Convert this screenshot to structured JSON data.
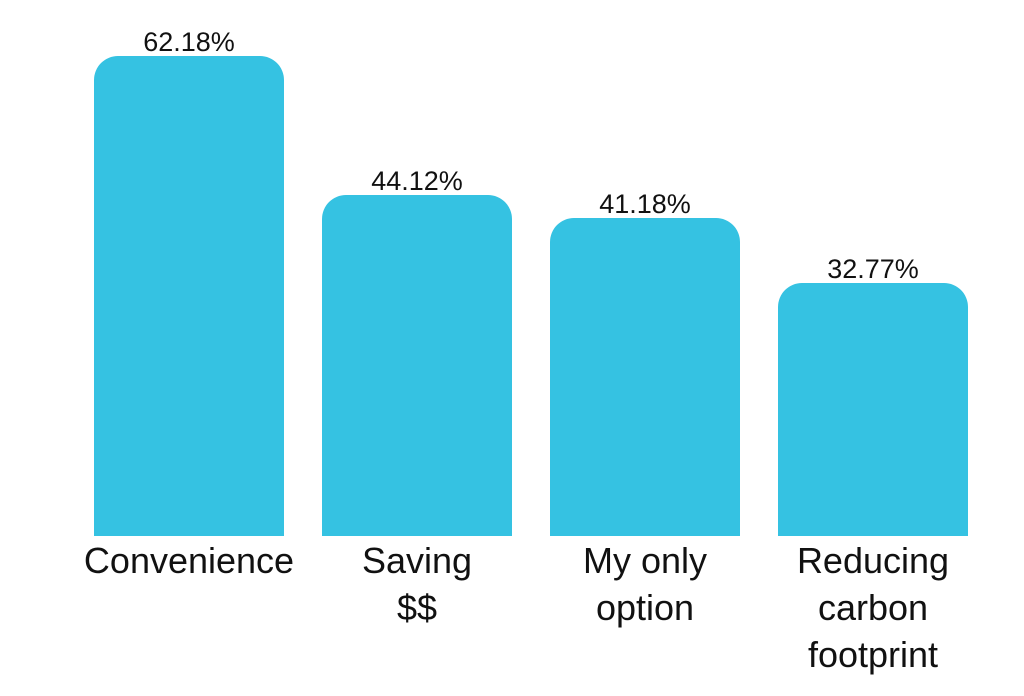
{
  "chart_data": {
    "type": "bar",
    "title": "",
    "xlabel": "",
    "ylabel": "",
    "categories": [
      "Convenience",
      "Saving $$",
      "My only option",
      "Reducing carbon footprint"
    ],
    "category_label_lines": [
      [
        "Convenience"
      ],
      [
        "Saving",
        "$$"
      ],
      [
        "My only",
        "option"
      ],
      [
        "Reducing",
        "carbon",
        "footprint"
      ]
    ],
    "values": [
      62.18,
      44.12,
      41.18,
      32.77
    ],
    "value_labels": [
      "62.18%",
      "44.12%",
      "41.18%",
      "32.77%"
    ],
    "unit": "%",
    "bar_color": "#35C2E2",
    "text_color": "#111111",
    "background_color": "#FFFFFF",
    "ylim": [
      0,
      65
    ],
    "grid": false,
    "legend": null,
    "orientation": "vertical",
    "value_label_position": "above-bar",
    "category_label_position": "below-bar"
  }
}
